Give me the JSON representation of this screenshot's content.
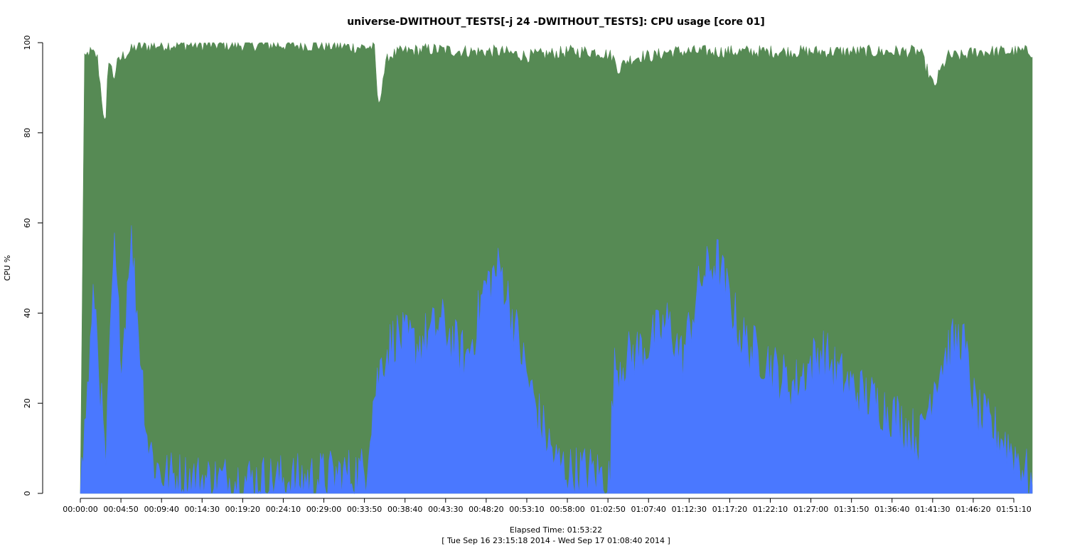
{
  "chart_data": {
    "type": "area",
    "title": "universe-DWITHOUT_TESTS[-j 24  -DWITHOUT_TESTS]: CPU usage [core 01]",
    "xlabel": "Elapsed Time: 01:53:22",
    "xlabel2": "[ Tue Sep 16 23:15:18 2014 - Wed Sep 17 01:08:40 2014 ]",
    "ylabel": "CPU %",
    "ylim": [
      0,
      100
    ],
    "yticks": [
      "0",
      "20",
      "40",
      "60",
      "80",
      "100"
    ],
    "xlim_seconds": [
      0,
      6802
    ],
    "xtick_step_seconds": 290,
    "xticks": [
      "00:00:00",
      "00:04:50",
      "00:09:40",
      "00:14:30",
      "00:19:20",
      "00:24:10",
      "00:29:00",
      "00:33:50",
      "00:38:40",
      "00:43:30",
      "00:48:20",
      "00:53:10",
      "00:58:00",
      "01:02:50",
      "01:07:40",
      "01:12:30",
      "01:17:20",
      "01:22:10",
      "01:27:00",
      "01:31:50",
      "01:36:40",
      "01:41:30",
      "01:46:20",
      "01:51:10"
    ],
    "grid": false,
    "legend": false,
    "colors": {
      "user": "#4a78ff",
      "system": "#568a54"
    },
    "series": [
      {
        "x": [
          0,
          100,
          180,
          240,
          270,
          300,
          360,
          420,
          480,
          540,
          600,
          900,
          1200,
          1500,
          1800,
          2040,
          2070,
          2100,
          2160,
          2250,
          2400,
          2520,
          2580,
          2700,
          2760,
          2820,
          2880,
          2940,
          3000,
          3100,
          3200,
          3300,
          3400,
          3500,
          3650,
          3790,
          3800,
          3820,
          3900,
          4050,
          4200,
          4300,
          4440,
          4550,
          4650,
          4720,
          4800,
          4900,
          4950,
          5000,
          5100,
          5200,
          5300,
          5400,
          5500,
          5600,
          5700,
          5800,
          5900,
          6000,
          6100,
          6200,
          6300,
          6400,
          6500,
          6600,
          6700,
          6802
        ],
        "values": [
          0,
          45,
          5,
          55,
          40,
          30,
          58,
          35,
          12,
          6,
          4,
          3,
          3,
          3,
          4,
          5,
          15,
          22,
          30,
          35,
          33,
          36,
          38,
          32,
          30,
          36,
          45,
          48,
          50,
          38,
          25,
          15,
          7,
          5,
          5,
          3,
          22,
          28,
          30,
          33,
          38,
          30,
          48,
          52,
          42,
          35,
          32,
          30,
          28,
          26,
          24,
          28,
          32,
          27,
          24,
          22,
          20,
          18,
          15,
          12,
          25,
          32,
          35,
          18,
          15,
          12,
          8,
          2
        ]
      },
      {
        "x": [
          0,
          30,
          60,
          120,
          180,
          200,
          240,
          260,
          300,
          400,
          600,
          900,
          1200,
          1500,
          1800,
          1950,
          2100,
          2130,
          2160,
          2200,
          2300,
          2500,
          2800,
          3000,
          3200,
          3500,
          3700,
          3800,
          3850,
          3900,
          4000,
          4100,
          4200,
          4400,
          4600,
          4800,
          5000,
          5200,
          5400,
          5600,
          5800,
          6000,
          6100,
          6150,
          6200,
          6300,
          6400,
          6500,
          6600,
          6700,
          6802
        ],
        "values": [
          0,
          96,
          98,
          97,
          80,
          97,
          92,
          95,
          97,
          99,
          99.5,
          99.5,
          99.5,
          99.5,
          99.3,
          99,
          99,
          85,
          92,
          97,
          98,
          98.5,
          98,
          98,
          97,
          98,
          98,
          97,
          94,
          96,
          97,
          97,
          98,
          98,
          98,
          98,
          98,
          98,
          98,
          98,
          98,
          98,
          90,
          94,
          97,
          97,
          98,
          98,
          98,
          98,
          98
        ]
      }
    ]
  }
}
